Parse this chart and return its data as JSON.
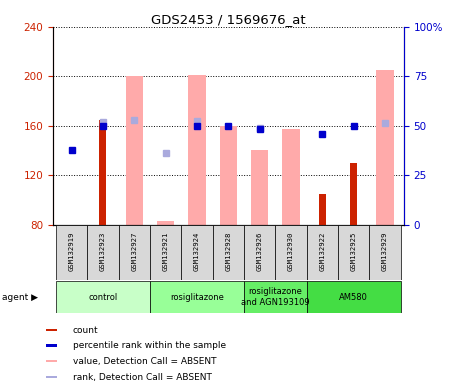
{
  "title": "GDS2453 / 1569676_at",
  "samples": [
    "GSM132919",
    "GSM132923",
    "GSM132927",
    "GSM132921",
    "GSM132924",
    "GSM132928",
    "GSM132926",
    "GSM132930",
    "GSM132922",
    "GSM132925",
    "GSM132929"
  ],
  "count_values": [
    null,
    165,
    null,
    null,
    null,
    null,
    null,
    null,
    105,
    130,
    null
  ],
  "pink_bar_values": [
    null,
    null,
    200,
    83,
    201,
    160,
    140,
    157,
    null,
    null,
    205
  ],
  "blue_square_values": [
    140,
    160,
    null,
    null,
    160,
    160,
    157,
    null,
    153,
    160,
    null
  ],
  "light_blue_square_values": [
    null,
    163,
    165,
    138,
    164,
    null,
    158,
    null,
    null,
    null,
    162
  ],
  "ylim_left": [
    80,
    240
  ],
  "ylim_right": [
    0,
    100
  ],
  "left_ticks": [
    80,
    120,
    160,
    200,
    240
  ],
  "right_ticks": [
    0,
    25,
    50,
    75,
    100
  ],
  "right_tick_labels": [
    "0",
    "25",
    "50",
    "75",
    "100%"
  ],
  "groups": [
    {
      "label": "control",
      "start": 0,
      "end": 3,
      "color": "#c8ffc8"
    },
    {
      "label": "rosiglitazone",
      "start": 3,
      "end": 6,
      "color": "#98ff98"
    },
    {
      "label": "rosiglitazone\nand AGN193109",
      "start": 6,
      "end": 8,
      "color": "#66ee66"
    },
    {
      "label": "AM580",
      "start": 8,
      "end": 11,
      "color": "#44dd44"
    }
  ],
  "colors": {
    "count_bar": "#cc2200",
    "pink_bar": "#ffaaaa",
    "blue_square": "#0000cc",
    "light_blue_square": "#aaaadd",
    "left_axis": "#cc2200",
    "right_axis": "#0000cc",
    "sample_bg": "#d8d8d8"
  },
  "legend_colors": [
    "#cc2200",
    "#0000cc",
    "#ffaaaa",
    "#aaaadd"
  ],
  "legend_labels": [
    "count",
    "percentile rank within the sample",
    "value, Detection Call = ABSENT",
    "rank, Detection Call = ABSENT"
  ]
}
